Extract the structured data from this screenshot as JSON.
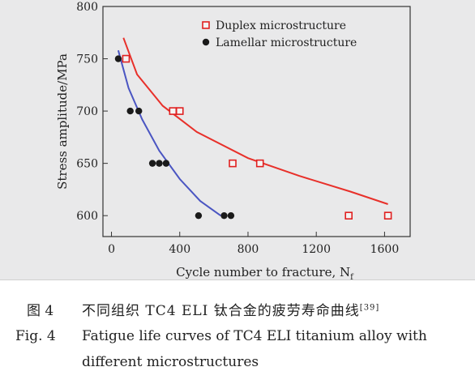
{
  "chart_data": {
    "type": "scatter",
    "xlabel": "Cycle number to fracture, N",
    "xlabel_sub": "f",
    "ylabel": "Stress amplitude/MPa",
    "xlim": [
      -50,
      1750
    ],
    "ylim": [
      580,
      800
    ],
    "xticks": [
      0,
      400,
      800,
      1200,
      1600
    ],
    "yticks": [
      600,
      650,
      700,
      750,
      800
    ],
    "legend_position": "top-right",
    "series": [
      {
        "name": "Duplex microstructure",
        "marker": "open-square",
        "color": "#e02020",
        "points": [
          [
            85,
            750
          ],
          [
            360,
            700
          ],
          [
            400,
            700
          ],
          [
            710,
            650
          ],
          [
            870,
            650
          ],
          [
            1390,
            600
          ],
          [
            1620,
            600
          ]
        ]
      },
      {
        "name": "Lamellar microstructure",
        "marker": "filled-circle",
        "color": "#1a1a1a",
        "points": [
          [
            40,
            750
          ],
          [
            110,
            700
          ],
          [
            160,
            700
          ],
          [
            240,
            650
          ],
          [
            280,
            650
          ],
          [
            320,
            650
          ],
          [
            510,
            600
          ],
          [
            660,
            600
          ],
          [
            700,
            600
          ]
        ]
      }
    ],
    "fits": [
      {
        "series": "Duplex microstructure",
        "color": "#e8302a",
        "points": [
          [
            70,
            770
          ],
          [
            150,
            735
          ],
          [
            300,
            705
          ],
          [
            500,
            680
          ],
          [
            800,
            655
          ],
          [
            1100,
            638
          ],
          [
            1400,
            623
          ],
          [
            1620,
            611
          ]
        ]
      },
      {
        "series": "Lamellar microstructure",
        "color": "#4a55c2",
        "points": [
          [
            40,
            758
          ],
          [
            100,
            722
          ],
          [
            180,
            692
          ],
          [
            280,
            662
          ],
          [
            400,
            635
          ],
          [
            520,
            614
          ],
          [
            640,
            600
          ]
        ]
      }
    ]
  },
  "caption": {
    "zh_label": "图 4",
    "zh_title": "不同组织 TC4 ELI 钛合金的疲劳寿命曲线",
    "zh_ref": "[39]",
    "en_label": "Fig. 4",
    "en_line1": "Fatigue life curves of TC4 ELI titanium alloy with",
    "en_line2": "different microstructures"
  }
}
